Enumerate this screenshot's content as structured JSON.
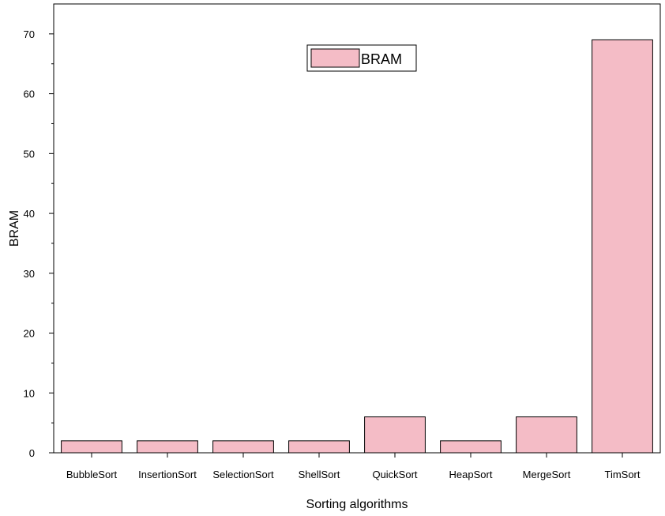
{
  "chart_data": {
    "type": "bar",
    "title": "",
    "xlabel": "Sorting algorithms",
    "ylabel": "BRAM",
    "categories": [
      "BubbleSort",
      "InsertionSort",
      "SelectionSort",
      "ShellSort",
      "QuickSort",
      "HeapSort",
      "MergeSort",
      "TimSort"
    ],
    "series": [
      {
        "name": "BRAM",
        "values": [
          2,
          2,
          2,
          2,
          6,
          2,
          6,
          69
        ],
        "color": "#f4bcc6"
      }
    ],
    "ylim": [
      0,
      75
    ],
    "yticks": [
      0,
      10,
      20,
      30,
      40,
      50,
      60,
      70
    ],
    "grid": false,
    "legend": {
      "placement": "top-center",
      "entries": [
        "BRAM"
      ]
    }
  }
}
